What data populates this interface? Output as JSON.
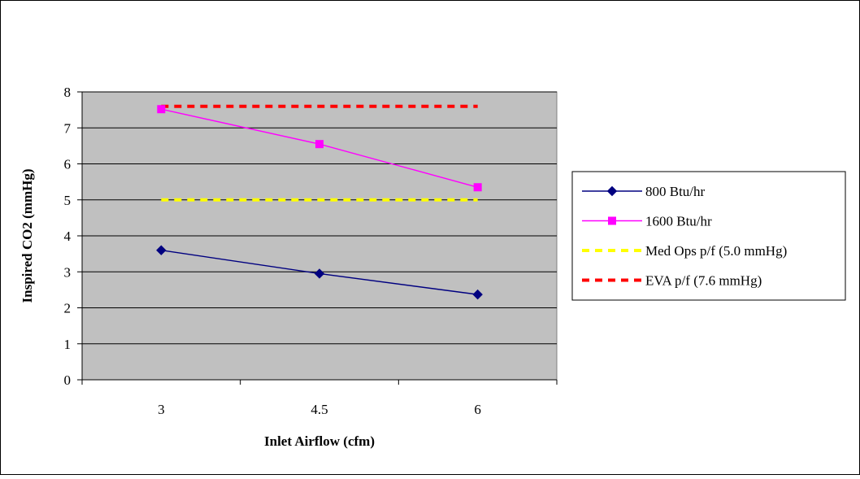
{
  "chart_data": {
    "type": "line",
    "title": "",
    "xlabel": "Inlet Airflow (cfm)",
    "ylabel": "Inspired CO2 (mmHg)",
    "categories": [
      "3",
      "4.5",
      "6"
    ],
    "ylim": [
      0,
      8
    ],
    "yticks": [
      0,
      1,
      2,
      3,
      4,
      5,
      6,
      7,
      8
    ],
    "ytick_labels": [
      "0",
      "1",
      "2",
      "3",
      "4",
      "5",
      "6",
      "7",
      "8"
    ],
    "grid": "horizontal",
    "plot_background": "#C0C0C0",
    "legend_position": "right",
    "series": [
      {
        "name": "800 Btu/hr",
        "values": [
          3.6,
          2.95,
          2.37
        ],
        "color": "#000080",
        "marker": "diamond",
        "line_style": "solid"
      },
      {
        "name": "1600 Btu/hr",
        "values": [
          7.52,
          6.55,
          5.35
        ],
        "color": "#FF00FF",
        "marker": "square",
        "line_style": "solid"
      },
      {
        "name": "Med Ops p/f (5.0 mmHg)",
        "values": [
          5.0,
          5.0,
          5.0
        ],
        "color": "#FFFF00",
        "marker": "none",
        "line_style": "dashed"
      },
      {
        "name": "EVA p/f (7.6 mmHg)",
        "values": [
          7.6,
          7.6,
          7.6
        ],
        "color": "#FF0000",
        "marker": "none",
        "line_style": "dashed"
      }
    ]
  }
}
